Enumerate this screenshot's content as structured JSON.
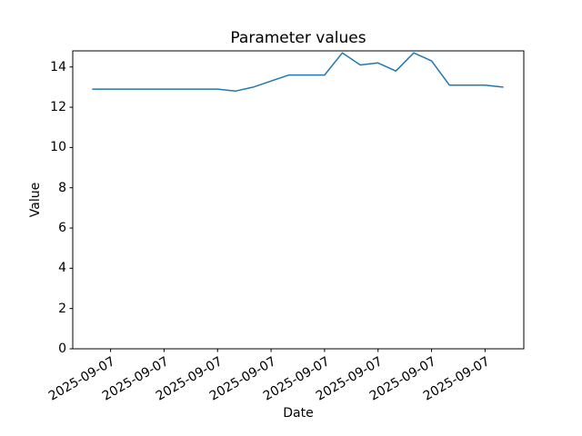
{
  "chart_data": {
    "type": "line",
    "title": "Parameter values",
    "xlabel": "Date",
    "ylabel": "Value",
    "values": [
      12.9,
      12.9,
      12.9,
      12.9,
      12.9,
      12.9,
      12.9,
      12.9,
      12.8,
      13.0,
      13.3,
      13.6,
      13.6,
      13.6,
      14.7,
      14.1,
      14.2,
      13.8,
      14.7,
      14.3,
      13.1,
      13.1,
      13.1,
      13.0
    ],
    "x_tick_labels": [
      "2025-09-07",
      "2025-09-07",
      "2025-09-07",
      "2025-09-07",
      "2025-09-07",
      "2025-09-07",
      "2025-09-07",
      "2025-09-07"
    ],
    "x_tick_indices": [
      1,
      4,
      7,
      10,
      13,
      16,
      19,
      22
    ],
    "y_ticks": [
      0,
      2,
      4,
      6,
      8,
      10,
      12,
      14
    ],
    "ylim": [
      0,
      14.8
    ],
    "grid": false,
    "legend": "none",
    "line_color": "#1f77b4",
    "axis_color": "#000000",
    "background_color": "#ffffff"
  }
}
